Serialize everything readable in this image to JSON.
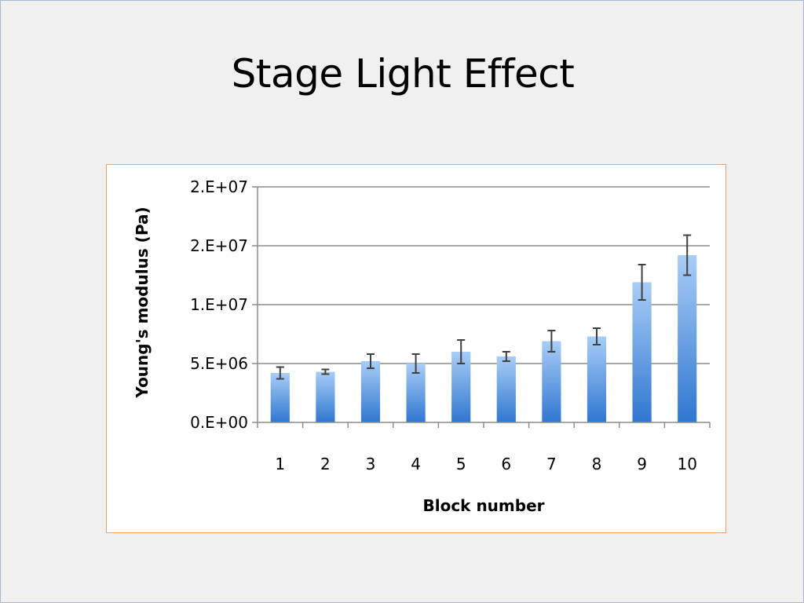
{
  "slide": {
    "title": "Stage Light Effect"
  },
  "chart_data": {
    "type": "bar",
    "title": "",
    "xlabel": "Block number",
    "ylabel": "Young's modulus (Pa)",
    "categories": [
      "1",
      "2",
      "3",
      "4",
      "5",
      "6",
      "7",
      "8",
      "9",
      "10"
    ],
    "values": [
      4200000,
      4300000,
      5200000,
      5000000,
      6000000,
      5600000,
      6900000,
      7300000,
      11900000,
      14200000
    ],
    "error": [
      500000,
      200000,
      600000,
      800000,
      1000000,
      400000,
      900000,
      700000,
      1500000,
      1700000
    ],
    "ylim": [
      0,
      20000000
    ],
    "yticks": [
      0,
      5000000,
      10000000,
      15000000,
      20000000
    ],
    "ytick_labels": [
      "0.E+00",
      "5.E+06",
      "1.E+07",
      "2.E+07",
      "2.E+07"
    ],
    "grid": true,
    "legend": "none",
    "colors": {
      "bar_top": "#a9cdf7",
      "bar_bottom": "#2f77d0",
      "gridline": "#8c8c8c",
      "error_bar": "#404040",
      "axis": "#8c8c8c"
    }
  }
}
